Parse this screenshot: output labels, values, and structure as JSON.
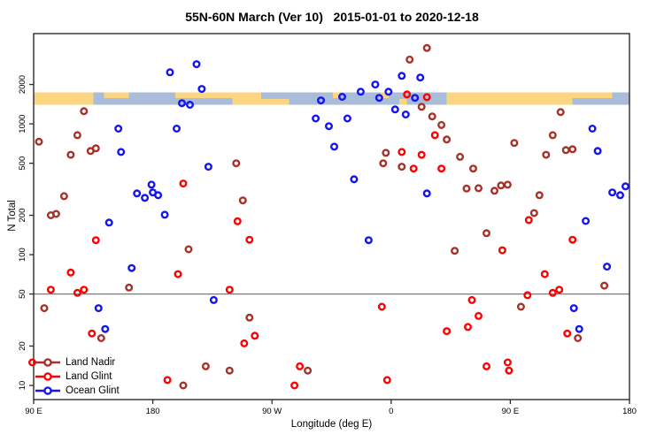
{
  "chart_data": {
    "type": "scatter",
    "title": "55N-60N March (Ver 10)   2015-01-01 to 2020-12-18",
    "x_axis": {
      "label": "Longitude (deg E)",
      "range": [
        90,
        540
      ],
      "ticks": [
        {
          "value": 90,
          "label": "90 E"
        },
        {
          "value": 180,
          "label": "180"
        },
        {
          "value": 270,
          "label": "90 W"
        },
        {
          "value": 360,
          "label": "0"
        },
        {
          "value": 450,
          "label": "90 E"
        },
        {
          "value": 540,
          "label": "180"
        }
      ]
    },
    "y_axis": {
      "label": "N Total",
      "scale": "log",
      "range": [
        7.8,
        4900
      ],
      "ticks": [
        10,
        20,
        50,
        100,
        200,
        500,
        1000,
        2000
      ]
    },
    "reference_line": {
      "value": 50,
      "color": "#7a7a7a"
    },
    "map_strip": {
      "top_value": 1740,
      "bottom_value": 1400,
      "land_color": "#FBD682",
      "ocean_color": "#A9BDD9",
      "segments": [
        {
          "from": 90,
          "to": 135,
          "type": "land"
        },
        {
          "from": 135,
          "to": 143,
          "type": "ocean"
        },
        {
          "from": 143,
          "to": 162,
          "type": "land-n"
        },
        {
          "from": 162,
          "to": 197,
          "type": "ocean"
        },
        {
          "from": 197,
          "to": 240,
          "type": "land-n"
        },
        {
          "from": 240,
          "to": 262,
          "type": "land"
        },
        {
          "from": 262,
          "to": 283,
          "type": "land-s"
        },
        {
          "from": 283,
          "to": 316,
          "type": "ocean"
        },
        {
          "from": 316,
          "to": 321,
          "type": "land-n"
        },
        {
          "from": 321,
          "to": 352,
          "type": "ocean"
        },
        {
          "from": 352,
          "to": 358,
          "type": "land-n"
        },
        {
          "from": 358,
          "to": 366,
          "type": "ocean"
        },
        {
          "from": 366,
          "to": 372,
          "type": "land-s"
        },
        {
          "from": 372,
          "to": 402,
          "type": "ocean"
        },
        {
          "from": 402,
          "to": 497,
          "type": "land"
        },
        {
          "from": 497,
          "to": 527,
          "type": "land-n"
        },
        {
          "from": 527,
          "to": 540,
          "type": "ocean"
        }
      ]
    },
    "legend": {
      "entries": [
        "Land Nadir",
        "Land Glint",
        "Ocean Glint"
      ]
    },
    "series": [
      {
        "name": "Land Nadir",
        "color": "#A63129",
        "points": [
          [
            94,
            730
          ],
          [
            128,
            1250
          ],
          [
            123,
            820
          ],
          [
            133,
            620
          ],
          [
            137,
            650
          ],
          [
            118,
            580
          ],
          [
            113,
            280
          ],
          [
            103,
            200
          ],
          [
            107,
            205
          ],
          [
            207,
            110
          ],
          [
            162,
            56
          ],
          [
            98,
            39
          ],
          [
            141,
            23
          ],
          [
            248,
            260
          ],
          [
            243,
            500
          ],
          [
            253,
            33
          ],
          [
            220,
            14
          ],
          [
            238,
            13
          ],
          [
            203,
            10
          ],
          [
            297,
            13
          ],
          [
            387,
            3800
          ],
          [
            374,
            3100
          ],
          [
            383,
            1350
          ],
          [
            391,
            1140
          ],
          [
            398,
            980
          ],
          [
            402,
            760
          ],
          [
            488,
            1230
          ],
          [
            482,
            820
          ],
          [
            453,
            715
          ],
          [
            492,
            630
          ],
          [
            497,
            640
          ],
          [
            477,
            580
          ],
          [
            356,
            600
          ],
          [
            354,
            500
          ],
          [
            368,
            470
          ],
          [
            412,
            560
          ],
          [
            422,
            455
          ],
          [
            417,
            320
          ],
          [
            426,
            322
          ],
          [
            438,
            308
          ],
          [
            443,
            338
          ],
          [
            448,
            343
          ],
          [
            472,
            285
          ],
          [
            468,
            208
          ],
          [
            432,
            146
          ],
          [
            408,
            107
          ],
          [
            521,
            58
          ],
          [
            458,
            40
          ],
          [
            501,
            23
          ]
        ]
      },
      {
        "name": "Land Glint",
        "color": "#FF0000",
        "points": [
          [
            203,
            350
          ],
          [
            244,
            180
          ],
          [
            137,
            129
          ],
          [
            253,
            130
          ],
          [
            118,
            73
          ],
          [
            199,
            71
          ],
          [
            103,
            54
          ],
          [
            123,
            51
          ],
          [
            128,
            54
          ],
          [
            238,
            54
          ],
          [
            134,
            25
          ],
          [
            257,
            24
          ],
          [
            249,
            21
          ],
          [
            191,
            11
          ],
          [
            291,
            14
          ],
          [
            287,
            10
          ],
          [
            89,
            15
          ],
          [
            372,
            1680
          ],
          [
            387,
            1600
          ],
          [
            393,
            820
          ],
          [
            368,
            610
          ],
          [
            383,
            580
          ],
          [
            377,
            455
          ],
          [
            398,
            455
          ],
          [
            464,
            184
          ],
          [
            497,
            130
          ],
          [
            444,
            108
          ],
          [
            476,
            71
          ],
          [
            463,
            49
          ],
          [
            482,
            51
          ],
          [
            487,
            54
          ],
          [
            353,
            40
          ],
          [
            421,
            45
          ],
          [
            426,
            34
          ],
          [
            418,
            28
          ],
          [
            402,
            26
          ],
          [
            493,
            25
          ],
          [
            432,
            14
          ],
          [
            448,
            15
          ],
          [
            449,
            13
          ],
          [
            357,
            11
          ]
        ]
      },
      {
        "name": "Ocean Glint",
        "color": "#1414EE",
        "points": [
          [
            193,
            2480
          ],
          [
            213,
            2860
          ],
          [
            217,
            1850
          ],
          [
            202,
            1440
          ],
          [
            208,
            1400
          ],
          [
            307,
            1510
          ],
          [
            323,
            1610
          ],
          [
            337,
            1760
          ],
          [
            348,
            2000
          ],
          [
            358,
            1760
          ],
          [
            368,
            2330
          ],
          [
            382,
            2260
          ],
          [
            351,
            1580
          ],
          [
            378,
            1580
          ],
          [
            363,
            1290
          ],
          [
            371,
            1180
          ],
          [
            313,
            960
          ],
          [
            327,
            1100
          ],
          [
            303,
            1100
          ],
          [
            317,
            670
          ],
          [
            154,
            920
          ],
          [
            198,
            920
          ],
          [
            156,
            610
          ],
          [
            222,
            470
          ],
          [
            179,
            343
          ],
          [
            168,
            294
          ],
          [
            174,
            272
          ],
          [
            180,
            299
          ],
          [
            184,
            285
          ],
          [
            189,
            202
          ],
          [
            147,
            176
          ],
          [
            139,
            39
          ],
          [
            144,
            27
          ],
          [
            164,
            79
          ],
          [
            226,
            45
          ],
          [
            343,
            129
          ],
          [
            332,
            377
          ],
          [
            387,
            294
          ],
          [
            498,
            39
          ],
          [
            502,
            27
          ],
          [
            523,
            81
          ],
          [
            512,
            920
          ],
          [
            516,
            620
          ],
          [
            527,
            299
          ],
          [
            533,
            285
          ],
          [
            537,
            333
          ],
          [
            507,
            181
          ]
        ]
      }
    ]
  },
  "colors": {
    "box": "#2b2b2b",
    "text": "#000000",
    "background": "#FFFFFF"
  }
}
